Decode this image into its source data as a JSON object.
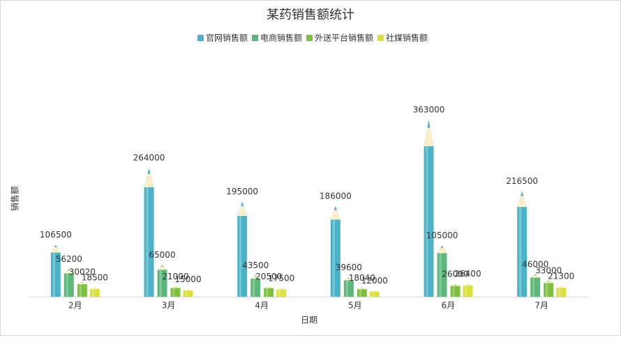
{
  "chart_data": {
    "type": "pencil-bar",
    "title": "某药销售额统计",
    "x_label": "日期",
    "y_label": "销售额",
    "categories": [
      "2月",
      "3月",
      "4月",
      "5月",
      "6月",
      "7月"
    ],
    "ylim": [
      0,
      500000
    ],
    "series": [
      {
        "name": "官网销售额",
        "color": "#4bb3c8",
        "values": [
          106500,
          264000,
          195000,
          186000,
          363000,
          216500
        ]
      },
      {
        "name": "电商销售额",
        "color": "#5cb87a",
        "values": [
          56200,
          65000,
          43500,
          39600,
          105000,
          46000
        ]
      },
      {
        "name": "外送平台销售额",
        "color": "#7cc13c",
        "values": [
          30020,
          21000,
          20500,
          18040,
          26000,
          33000
        ]
      },
      {
        "name": "社媒销售额",
        "color": "#d9e13a",
        "values": [
          18500,
          15000,
          17500,
          12000,
          26400,
          21300
        ]
      }
    ]
  }
}
